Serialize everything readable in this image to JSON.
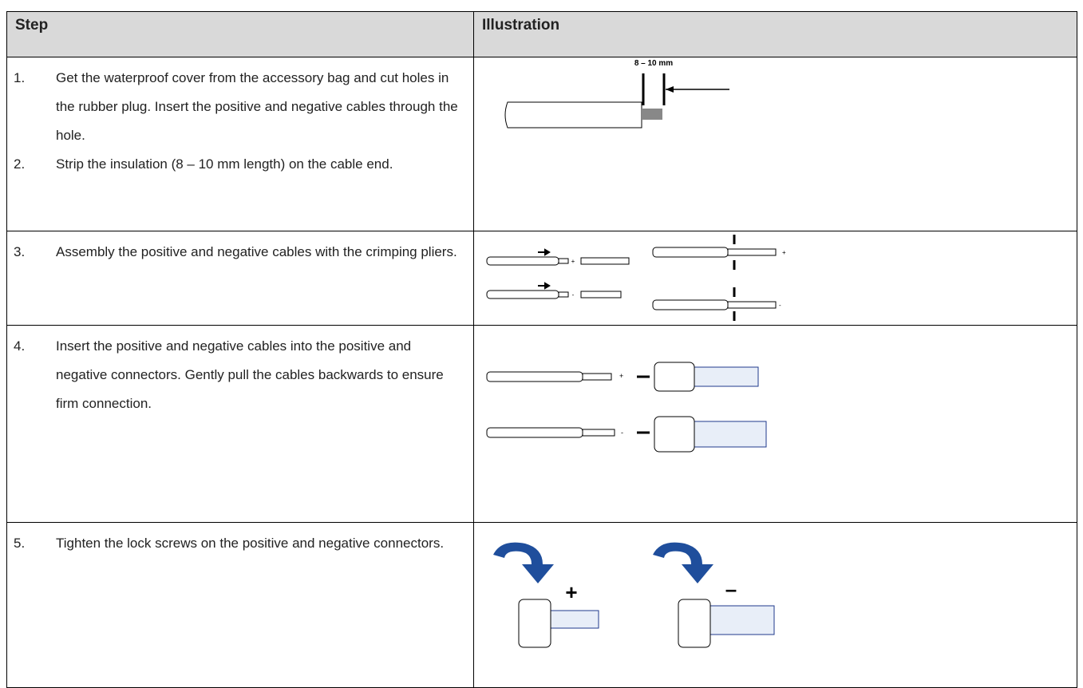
{
  "table": {
    "header": [
      "Step",
      "Illustration"
    ],
    "rows": [
      {
        "steps": [
          {
            "number": "1.",
            "text": "Get the waterproof cover from the accessory bag and cut holes in the rubber plug. Insert the positive and negative cables through the hole."
          },
          {
            "number": "2.",
            "text": "Strip the insulation (8 – 10 mm length) on the cable end."
          }
        ],
        "illustration": {
          "labels": [
            "8 – 10 mm"
          ]
        }
      },
      {
        "steps": [
          {
            "number": "3.",
            "text": "Assembly the positive and negative cables with the crimping pliers."
          }
        ],
        "illustration": {
          "labels": [
            "+",
            "+",
            "-",
            "-"
          ]
        }
      },
      {
        "steps": [
          {
            "number": "4.",
            "text": "Insert the positive and negative cables into the positive and negative connectors. Gently pull the cables backwards to ensure firm connection."
          }
        ],
        "illustration": {
          "labels": [
            "+",
            "-"
          ]
        }
      },
      {
        "steps": [
          {
            "number": "5.",
            "text": "Tighten the lock screws on the positive and negative connectors."
          }
        ],
        "illustration": {
          "labels": [
            "+",
            "–"
          ]
        }
      }
    ]
  }
}
